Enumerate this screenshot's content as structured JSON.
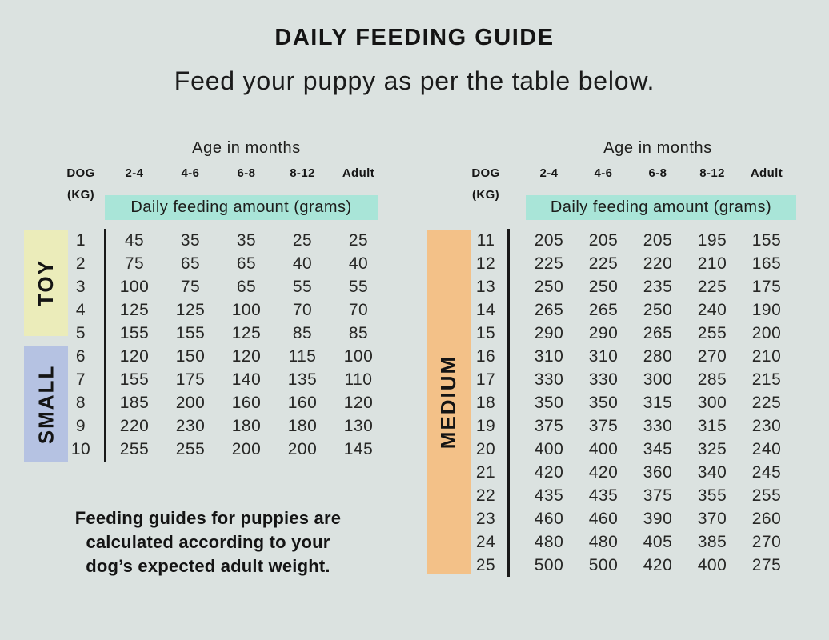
{
  "page": {
    "title": "DAILY FEEDING GUIDE",
    "subtitle": "Feed your puppy as per the table below.",
    "note_lines": [
      "Feeding guides for puppies are",
      "calculated according to your",
      "dog’s expected adult weight."
    ]
  },
  "colors": {
    "background": "#dbe2e0",
    "banner_teal": "#a9e5d8",
    "toy_yellow": "#ebecba",
    "small_blue": "#b5c2e2",
    "medium_orange": "#f3c188",
    "text": "#1d1d1b",
    "divider": "#191919"
  },
  "tables": [
    {
      "id": "toy-small",
      "age_header": "Age in months",
      "dog_header": "DOG",
      "kg_header": "(KG)",
      "age_columns": [
        "2-4",
        "4-6",
        "6-8",
        "8-12",
        "Adult"
      ],
      "banner": "Daily feeding amount (grams)",
      "groups": [
        {
          "label": "TOY",
          "color_key": "toy_yellow",
          "rows": [
            {
              "kg": "1",
              "values": [
                "45",
                "35",
                "35",
                "25",
                "25"
              ]
            },
            {
              "kg": "2",
              "values": [
                "75",
                "65",
                "65",
                "40",
                "40"
              ]
            },
            {
              "kg": "3",
              "values": [
                "100",
                "75",
                "65",
                "55",
                "55"
              ]
            },
            {
              "kg": "4",
              "values": [
                "125",
                "125",
                "100",
                "70",
                "70"
              ]
            },
            {
              "kg": "5",
              "values": [
                "155",
                "155",
                "125",
                "85",
                "85"
              ]
            }
          ]
        },
        {
          "label": "SMALL",
          "color_key": "small_blue",
          "rows": [
            {
              "kg": "6",
              "values": [
                "120",
                "150",
                "120",
                "115",
                "100"
              ]
            },
            {
              "kg": "7",
              "values": [
                "155",
                "175",
                "140",
                "135",
                "110"
              ]
            },
            {
              "kg": "8",
              "values": [
                "185",
                "200",
                "160",
                "160",
                "120"
              ]
            },
            {
              "kg": "9",
              "values": [
                "220",
                "230",
                "180",
                "180",
                "130"
              ]
            },
            {
              "kg": "10",
              "values": [
                "255",
                "255",
                "200",
                "200",
                "145"
              ]
            }
          ]
        }
      ]
    },
    {
      "id": "medium",
      "age_header": "Age in months",
      "dog_header": "DOG",
      "kg_header": "(KG)",
      "age_columns": [
        "2-4",
        "4-6",
        "6-8",
        "8-12",
        "Adult"
      ],
      "banner": "Daily feeding amount (grams)",
      "groups": [
        {
          "label": "MEDIUM",
          "color_key": "medium_orange",
          "rows": [
            {
              "kg": "11",
              "values": [
                "205",
                "205",
                "205",
                "195",
                "155"
              ]
            },
            {
              "kg": "12",
              "values": [
                "225",
                "225",
                "220",
                "210",
                "165"
              ]
            },
            {
              "kg": "13",
              "values": [
                "250",
                "250",
                "235",
                "225",
                "175"
              ]
            },
            {
              "kg": "14",
              "values": [
                "265",
                "265",
                "250",
                "240",
                "190"
              ]
            },
            {
              "kg": "15",
              "values": [
                "290",
                "290",
                "265",
                "255",
                "200"
              ]
            },
            {
              "kg": "16",
              "values": [
                "310",
                "310",
                "280",
                "270",
                "210"
              ]
            },
            {
              "kg": "17",
              "values": [
                "330",
                "330",
                "300",
                "285",
                "215"
              ]
            },
            {
              "kg": "18",
              "values": [
                "350",
                "350",
                "315",
                "300",
                "225"
              ]
            },
            {
              "kg": "19",
              "values": [
                "375",
                "375",
                "330",
                "315",
                "230"
              ]
            },
            {
              "kg": "20",
              "values": [
                "400",
                "400",
                "345",
                "325",
                "240"
              ]
            },
            {
              "kg": "21",
              "values": [
                "420",
                "420",
                "360",
                "340",
                "245"
              ]
            },
            {
              "kg": "22",
              "values": [
                "435",
                "435",
                "375",
                "355",
                "255"
              ]
            },
            {
              "kg": "23",
              "values": [
                "460",
                "460",
                "390",
                "370",
                "260"
              ]
            },
            {
              "kg": "24",
              "values": [
                "480",
                "480",
                "405",
                "385",
                "270"
              ]
            },
            {
              "kg": "25",
              "values": [
                "500",
                "500",
                "420",
                "400",
                "275"
              ]
            }
          ]
        }
      ]
    }
  ]
}
